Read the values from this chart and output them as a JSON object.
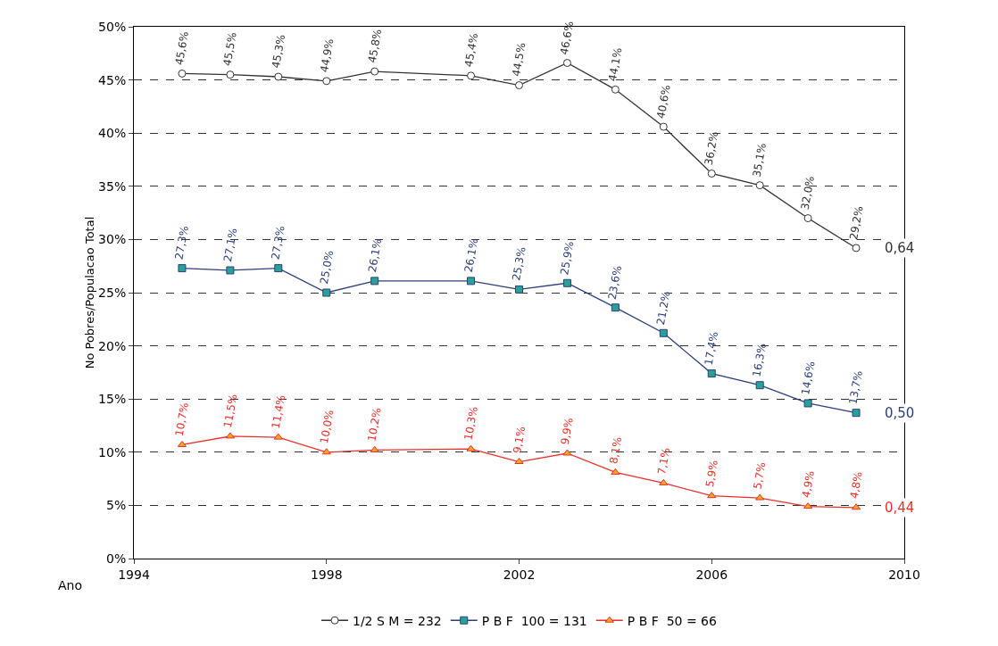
{
  "chart_data": {
    "type": "line",
    "ylabel": "No Pobres/Populacao Total",
    "xlabel": "Ano",
    "x": [
      1995,
      1996,
      1997,
      1998,
      1999,
      2001,
      2002,
      2003,
      2004,
      2005,
      2006,
      2007,
      2008,
      2009
    ],
    "series": [
      {
        "name": "1/2 S M = 232",
        "color": "#333333",
        "marker": "circle",
        "values": [
          45.6,
          45.5,
          45.3,
          44.9,
          45.8,
          45.4,
          44.5,
          46.6,
          44.1,
          40.6,
          36.2,
          35.1,
          32.0,
          29.2
        ],
        "value_labels": [
          "45,6%",
          "45,5%",
          "45,3%",
          "44,9%",
          "45,8%",
          "45,4%",
          "44,5%",
          "46,6%",
          "44,1%",
          "40,6%",
          "36,2%",
          "35,1%",
          "32,0%",
          "29,2%"
        ]
      },
      {
        "name": "P B F  100 = 131",
        "color": "#2b3f7a",
        "marker": "square",
        "values": [
          27.3,
          27.1,
          27.3,
          25.0,
          26.1,
          26.1,
          25.3,
          25.9,
          23.6,
          21.2,
          17.4,
          16.3,
          14.6,
          13.7
        ],
        "value_labels": [
          "27,3%",
          "27,1%",
          "27,3%",
          "25,0%",
          "26,1%",
          "26,1%",
          "25,3%",
          "25,9%",
          "23,6%",
          "21,2%",
          "17,4%",
          "16,3%",
          "14,6%",
          "13,7%"
        ]
      },
      {
        "name": "P B F  50 = 66",
        "color": "#e8302a",
        "marker": "triangle",
        "values": [
          10.7,
          11.5,
          11.4,
          10.0,
          10.2,
          10.3,
          9.1,
          9.9,
          8.1,
          7.1,
          5.9,
          5.7,
          4.9,
          4.8
        ],
        "value_labels": [
          "10,7%",
          "11,5%",
          "11,4%",
          "10,0%",
          "10,2%",
          "10,3%",
          "9,1%",
          "9,9%",
          "8,1%",
          "7,1%",
          "5,9%",
          "5,7%",
          "4,9%",
          "4,8%"
        ]
      }
    ],
    "annotations": [
      "0,64",
      "0,50",
      "0,44"
    ],
    "xlim": [
      1994,
      2010
    ],
    "xticks": [
      1994,
      1998,
      2002,
      2006,
      2010
    ],
    "ylim": [
      0,
      50
    ],
    "yticks": [
      {
        "value": 0,
        "label": "0%"
      },
      {
        "value": 5,
        "label": "5%"
      },
      {
        "value": 10,
        "label": "10%"
      },
      {
        "value": 15,
        "label": "15%"
      },
      {
        "value": 20,
        "label": "20%"
      },
      {
        "value": 25,
        "label": "25%"
      },
      {
        "value": 30,
        "label": "30%"
      },
      {
        "value": 35,
        "label": "35%"
      },
      {
        "value": 40,
        "label": "40%"
      },
      {
        "value": 45,
        "label": "45%"
      },
      {
        "value": 50,
        "label": "50%"
      }
    ],
    "grid": "y",
    "legend": "bottom",
    "line_style": "solid"
  }
}
